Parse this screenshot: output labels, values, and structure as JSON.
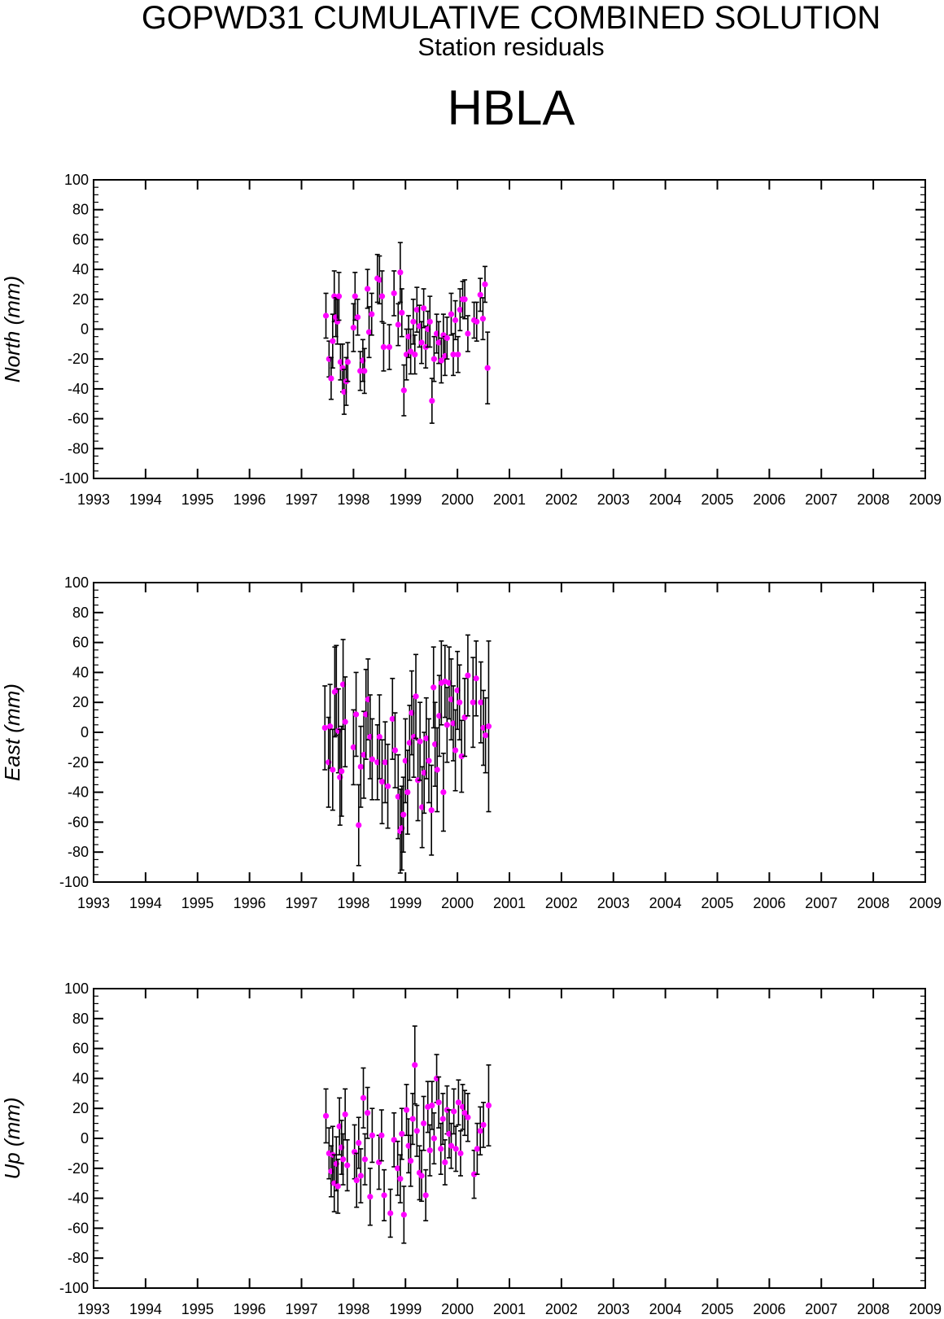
{
  "header": {
    "title": "GOPWD31 CUMULATIVE COMBINED SOLUTION",
    "subtitle": "Station residuals",
    "station": "HBLA"
  },
  "chart_data": [
    {
      "type": "scatter",
      "ylabel": "North (mm)",
      "xlim": [
        1993,
        2009
      ],
      "ylim": [
        -100,
        100
      ],
      "xticks": [
        "1993",
        "1994",
        "1995",
        "1996",
        "1997",
        "1998",
        "1999",
        "2000",
        "2001",
        "2002",
        "2003",
        "2004",
        "2005",
        "2006",
        "2007",
        "2008",
        "2009"
      ],
      "yticks": [
        "100",
        "80",
        "60",
        "40",
        "20",
        "0",
        "-20",
        "-40",
        "-60",
        "-80",
        "-100"
      ],
      "marker_color": "#ff00ff",
      "errorbar_color": "#000000",
      "points": [
        [
          1997.47,
          9,
          15
        ],
        [
          1997.53,
          -20,
          12
        ],
        [
          1997.57,
          -33,
          14
        ],
        [
          1997.6,
          -8,
          18
        ],
        [
          1997.63,
          22,
          17
        ],
        [
          1997.66,
          8,
          13
        ],
        [
          1997.69,
          5,
          15
        ],
        [
          1997.72,
          22,
          16
        ],
        [
          1997.75,
          -22,
          12
        ],
        [
          1997.79,
          -26,
          16
        ],
        [
          1997.82,
          -42,
          15
        ],
        [
          1997.86,
          -35,
          16
        ],
        [
          1997.89,
          -22,
          13
        ],
        [
          1998.0,
          1,
          16
        ],
        [
          1998.03,
          22,
          16
        ],
        [
          1998.08,
          8,
          12
        ],
        [
          1998.13,
          -28,
          13
        ],
        [
          1998.18,
          -21,
          14
        ],
        [
          1998.21,
          -28,
          15
        ],
        [
          1998.27,
          27,
          13
        ],
        [
          1998.3,
          -2,
          17
        ],
        [
          1998.35,
          10,
          14
        ],
        [
          1998.46,
          34,
          16
        ],
        [
          1998.5,
          33,
          16
        ],
        [
          1998.55,
          22,
          17
        ],
        [
          1998.58,
          -12,
          16
        ],
        [
          1998.69,
          -12,
          15
        ],
        [
          1998.78,
          24,
          15
        ],
        [
          1998.86,
          3,
          14
        ],
        [
          1998.9,
          38,
          20
        ],
        [
          1998.93,
          11,
          16
        ],
        [
          1998.97,
          -41,
          17
        ],
        [
          1999.02,
          -17,
          17
        ],
        [
          1999.06,
          -5,
          14
        ],
        [
          1999.1,
          -15,
          15
        ],
        [
          1999.15,
          5,
          15
        ],
        [
          1999.18,
          -17,
          13
        ],
        [
          1999.22,
          13,
          15
        ],
        [
          1999.27,
          2,
          14
        ],
        [
          1999.31,
          -9,
          14
        ],
        [
          1999.35,
          14,
          13
        ],
        [
          1999.39,
          -12,
          14
        ],
        [
          1999.43,
          0,
          12
        ],
        [
          1999.47,
          5,
          17
        ],
        [
          1999.51,
          -48,
          15
        ],
        [
          1999.55,
          -20,
          15
        ],
        [
          1999.6,
          -3,
          13
        ],
        [
          1999.64,
          -9,
          14
        ],
        [
          1999.69,
          -21,
          15
        ],
        [
          1999.73,
          -4,
          14
        ],
        [
          1999.76,
          -18,
          13
        ],
        [
          1999.8,
          -6,
          14
        ],
        [
          1999.88,
          10,
          14
        ],
        [
          1999.92,
          -17,
          14
        ],
        [
          1999.96,
          6,
          13
        ],
        [
          2000.01,
          -17,
          12
        ],
        [
          2000.05,
          13,
          14
        ],
        [
          2000.1,
          20,
          12
        ],
        [
          2000.14,
          20,
          13
        ],
        [
          2000.2,
          -3,
          12
        ],
        [
          2000.32,
          6,
          12
        ],
        [
          2000.37,
          5,
          13
        ],
        [
          2000.44,
          23,
          11
        ],
        [
          2000.49,
          7,
          14
        ],
        [
          2000.53,
          30,
          12
        ],
        [
          2000.58,
          -26,
          24
        ]
      ]
    },
    {
      "type": "scatter",
      "ylabel": "East (mm)",
      "xlim": [
        1993,
        2009
      ],
      "ylim": [
        -100,
        100
      ],
      "xticks": [
        "1993",
        "1994",
        "1995",
        "1996",
        "1997",
        "1998",
        "1999",
        "2000",
        "2001",
        "2002",
        "2003",
        "2004",
        "2005",
        "2006",
        "2007",
        "2008",
        "2009"
      ],
      "yticks": [
        "100",
        "80",
        "60",
        "40",
        "20",
        "0",
        "-20",
        "-40",
        "-60",
        "-80",
        "-100"
      ],
      "marker_color": "#ff00ff",
      "errorbar_color": "#000000",
      "points": [
        [
          1997.45,
          3,
          28
        ],
        [
          1997.52,
          -20,
          30
        ],
        [
          1997.55,
          4,
          28
        ],
        [
          1997.6,
          -25,
          27
        ],
        [
          1997.64,
          27,
          30
        ],
        [
          1997.67,
          28,
          30
        ],
        [
          1997.71,
          1,
          28
        ],
        [
          1997.74,
          -30,
          32
        ],
        [
          1997.77,
          -26,
          30
        ],
        [
          1997.8,
          32,
          30
        ],
        [
          1997.84,
          7,
          30
        ],
        [
          1998.0,
          -10,
          25
        ],
        [
          1998.05,
          12,
          28
        ],
        [
          1998.1,
          -62,
          27
        ],
        [
          1998.14,
          -23,
          27
        ],
        [
          1998.2,
          -15,
          29
        ],
        [
          1998.24,
          12,
          30
        ],
        [
          1998.28,
          22,
          27
        ],
        [
          1998.32,
          -3,
          28
        ],
        [
          1998.36,
          -18,
          27
        ],
        [
          1998.46,
          -20,
          25
        ],
        [
          1998.5,
          -3,
          28
        ],
        [
          1998.55,
          -33,
          28
        ],
        [
          1998.61,
          -20,
          27
        ],
        [
          1998.66,
          -36,
          28
        ],
        [
          1998.75,
          9,
          27
        ],
        [
          1998.8,
          -12,
          25
        ],
        [
          1998.86,
          -43,
          28
        ],
        [
          1998.9,
          -66,
          28
        ],
        [
          1998.93,
          -64,
          28
        ],
        [
          1998.96,
          -55,
          25
        ],
        [
          1999.0,
          -19,
          28
        ],
        [
          1999.04,
          -40,
          28
        ],
        [
          1999.08,
          -7,
          25
        ],
        [
          1999.12,
          13,
          28
        ],
        [
          1999.16,
          -3,
          27
        ],
        [
          1999.2,
          24,
          28
        ],
        [
          1999.24,
          -32,
          27
        ],
        [
          1999.28,
          -6,
          26
        ],
        [
          1999.32,
          -50,
          27
        ],
        [
          1999.36,
          -27,
          27
        ],
        [
          1999.4,
          -4,
          27
        ],
        [
          1999.45,
          -19,
          28
        ],
        [
          1999.5,
          -52,
          30
        ],
        [
          1999.54,
          30,
          27
        ],
        [
          1999.57,
          -8,
          28
        ],
        [
          1999.61,
          -25,
          28
        ],
        [
          1999.65,
          11,
          27
        ],
        [
          1999.69,
          33,
          28
        ],
        [
          1999.73,
          -40,
          26
        ],
        [
          1999.76,
          34,
          24
        ],
        [
          1999.8,
          5,
          25
        ],
        [
          1999.84,
          33,
          24
        ],
        [
          1999.88,
          22,
          27
        ],
        [
          1999.92,
          6,
          25
        ],
        [
          1999.96,
          -12,
          27
        ],
        [
          2000.0,
          28,
          26
        ],
        [
          2000.04,
          20,
          25
        ],
        [
          2000.08,
          -16,
          24
        ],
        [
          2000.14,
          10,
          26
        ],
        [
          2000.2,
          38,
          27
        ],
        [
          2000.3,
          20,
          30
        ],
        [
          2000.36,
          36,
          25
        ],
        [
          2000.45,
          20,
          27
        ],
        [
          2000.5,
          3,
          25
        ],
        [
          2000.54,
          -2,
          25
        ],
        [
          2000.6,
          4,
          57
        ]
      ]
    },
    {
      "type": "scatter",
      "ylabel": "Up (mm)",
      "xlim": [
        1993,
        2009
      ],
      "ylim": [
        -100,
        100
      ],
      "xticks": [
        "1993",
        "1994",
        "1995",
        "1996",
        "1997",
        "1998",
        "1999",
        "2000",
        "2001",
        "2002",
        "2003",
        "2004",
        "2005",
        "2006",
        "2007",
        "2008",
        "2009"
      ],
      "yticks": [
        "100",
        "80",
        "60",
        "40",
        "20",
        "0",
        "-20",
        "-40",
        "-60",
        "-80",
        "-100"
      ],
      "marker_color": "#ff00ff",
      "errorbar_color": "#000000",
      "points": [
        [
          1997.47,
          15,
          18
        ],
        [
          1997.53,
          -10,
          17
        ],
        [
          1997.57,
          -22,
          17
        ],
        [
          1997.6,
          -11,
          19
        ],
        [
          1997.63,
          -30,
          19
        ],
        [
          1997.67,
          -17,
          18
        ],
        [
          1997.7,
          -32,
          18
        ],
        [
          1997.73,
          8,
          19
        ],
        [
          1997.77,
          -6,
          18
        ],
        [
          1997.8,
          -14,
          17
        ],
        [
          1997.84,
          16,
          17
        ],
        [
          1997.88,
          -18,
          17
        ],
        [
          1998.02,
          -9,
          18
        ],
        [
          1998.06,
          -28,
          18
        ],
        [
          1998.1,
          -3,
          17
        ],
        [
          1998.14,
          -25,
          18
        ],
        [
          1998.19,
          27,
          20
        ],
        [
          1998.22,
          -14,
          17
        ],
        [
          1998.27,
          17,
          17
        ],
        [
          1998.32,
          -39,
          19
        ],
        [
          1998.36,
          2,
          18
        ],
        [
          1998.49,
          -16,
          18
        ],
        [
          1998.54,
          2,
          17
        ],
        [
          1998.59,
          -38,
          17
        ],
        [
          1998.71,
          -50,
          16
        ],
        [
          1998.78,
          -1,
          18
        ],
        [
          1998.85,
          -20,
          18
        ],
        [
          1998.9,
          -27,
          16
        ],
        [
          1998.93,
          3,
          17
        ],
        [
          1998.97,
          -51,
          19
        ],
        [
          1999.02,
          19,
          17
        ],
        [
          1999.06,
          -5,
          18
        ],
        [
          1999.1,
          -15,
          17
        ],
        [
          1999.14,
          13,
          17
        ],
        [
          1999.18,
          49,
          26
        ],
        [
          1999.22,
          5,
          17
        ],
        [
          1999.27,
          -23,
          18
        ],
        [
          1999.31,
          -25,
          17
        ],
        [
          1999.35,
          10,
          18
        ],
        [
          1999.39,
          -38,
          17
        ],
        [
          1999.43,
          21,
          17
        ],
        [
          1999.47,
          -8,
          17
        ],
        [
          1999.51,
          22,
          16
        ],
        [
          1999.55,
          0,
          17
        ],
        [
          1999.6,
          40,
          16
        ],
        [
          1999.64,
          24,
          17
        ],
        [
          1999.68,
          -7,
          17
        ],
        [
          1999.72,
          13,
          17
        ],
        [
          1999.76,
          -16,
          15
        ],
        [
          1999.8,
          19,
          16
        ],
        [
          1999.84,
          3,
          16
        ],
        [
          1999.88,
          -5,
          15
        ],
        [
          1999.93,
          18,
          15
        ],
        [
          1999.97,
          -7,
          15
        ],
        [
          2000.02,
          24,
          15
        ],
        [
          2000.06,
          -10,
          15
        ],
        [
          2000.1,
          21,
          15
        ],
        [
          2000.14,
          17,
          15
        ],
        [
          2000.2,
          14,
          16
        ],
        [
          2000.32,
          -24,
          16
        ],
        [
          2000.38,
          -7,
          17
        ],
        [
          2000.44,
          5,
          16
        ],
        [
          2000.5,
          9,
          15
        ],
        [
          2000.6,
          22,
          27
        ]
      ]
    }
  ]
}
